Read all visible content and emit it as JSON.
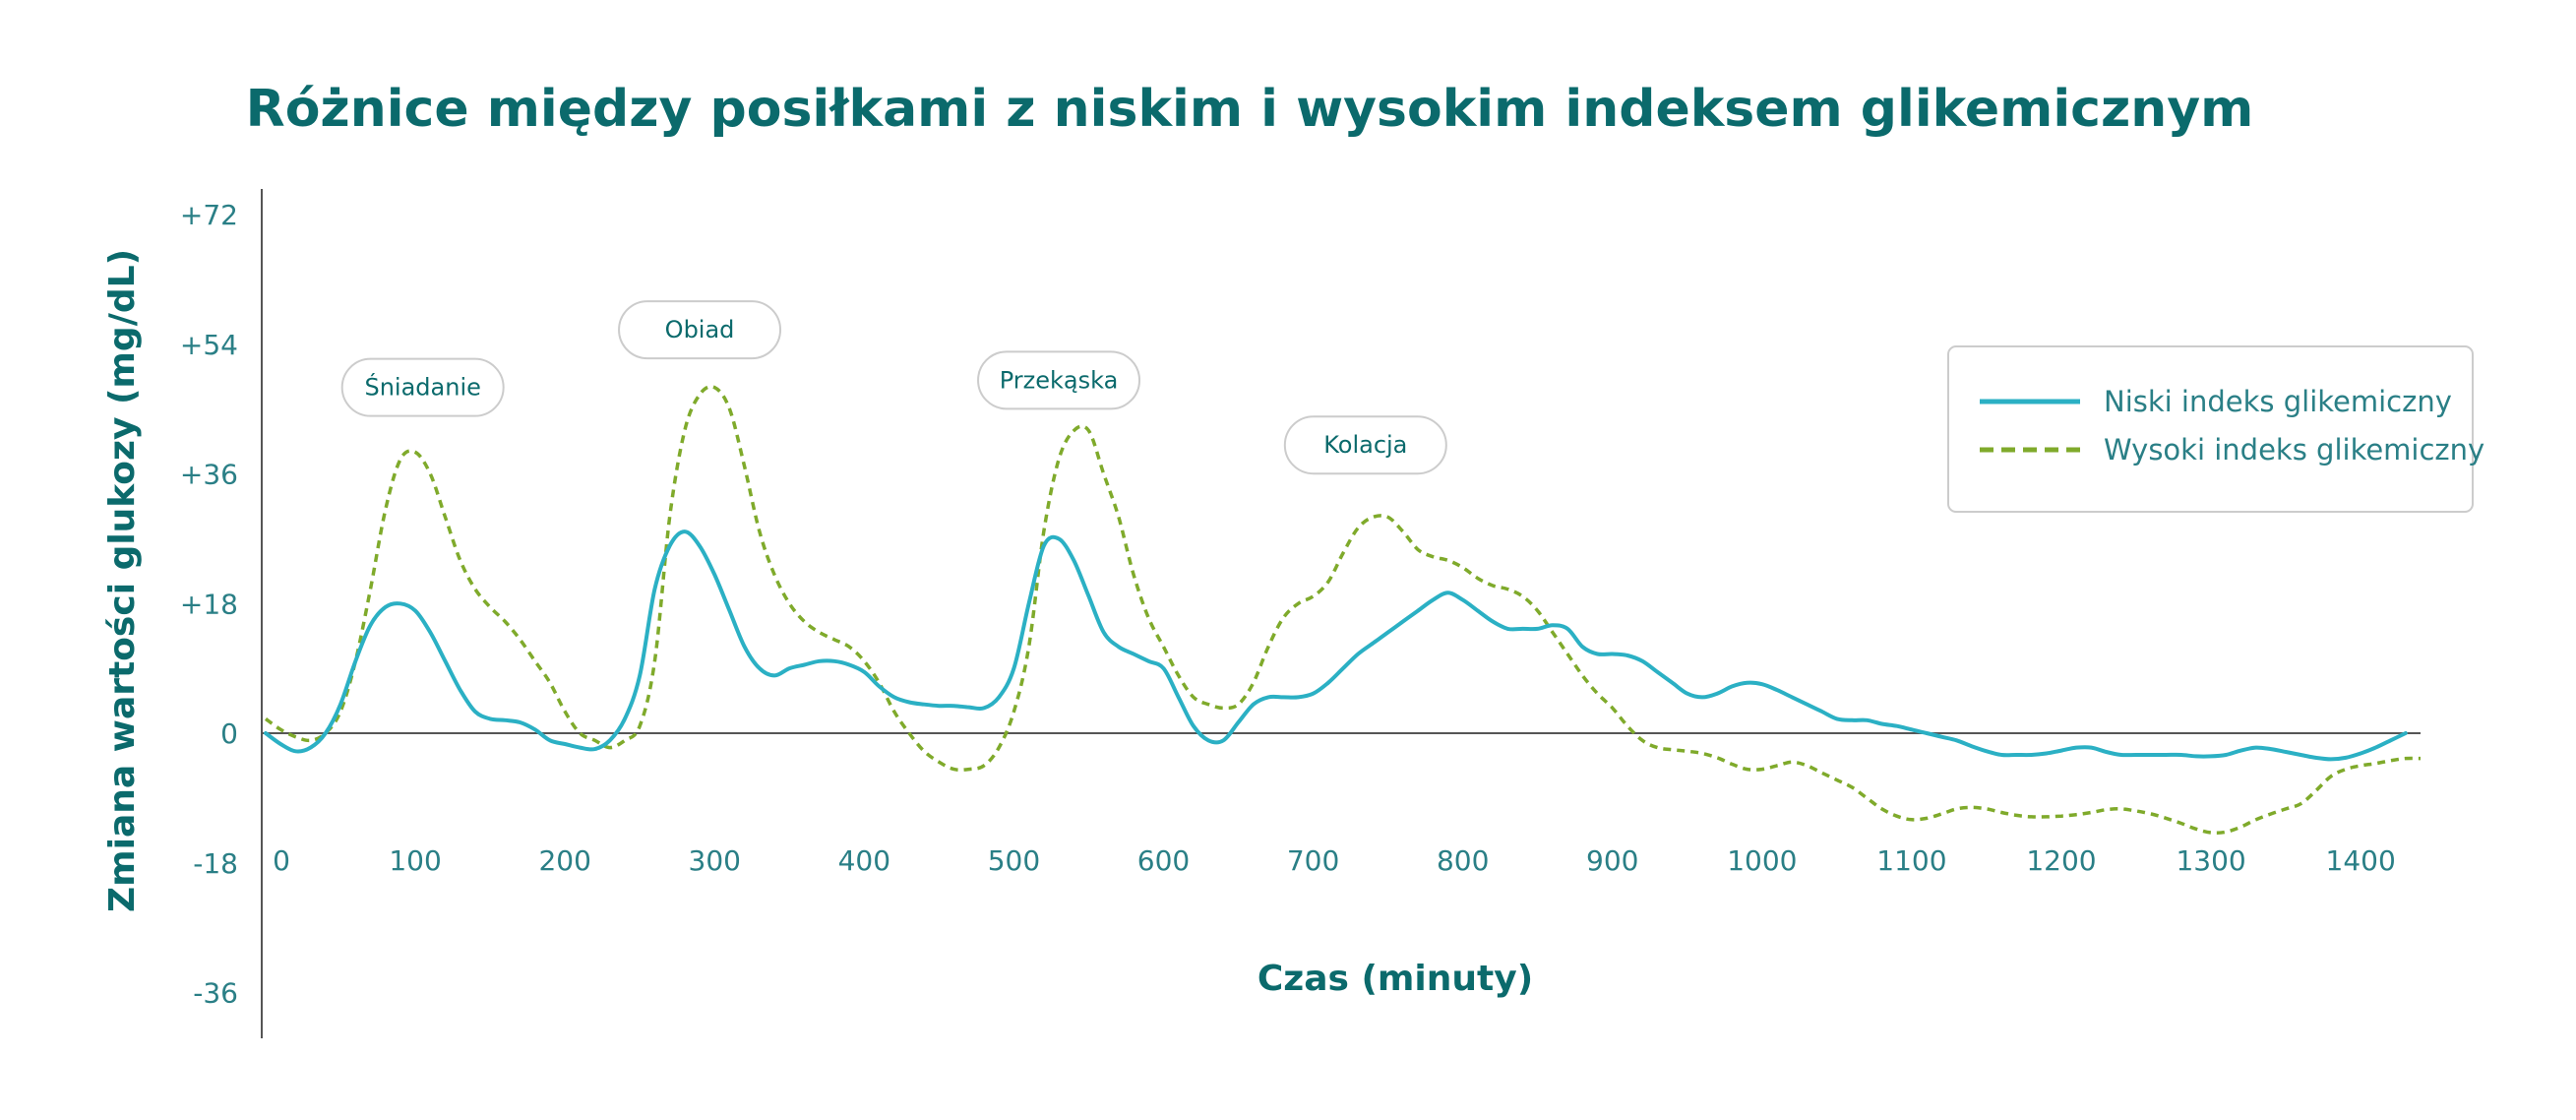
{
  "chart_data": {
    "type": "line",
    "title": "Różnice między posiłkami z niskim i wysokim indeksem glikemicznym",
    "xlabel": "Czas (minuty)",
    "ylabel": "Zmiana wartości glukozy (mg/dL)",
    "xlim": [
      0,
      1440
    ],
    "ylim": [
      -36,
      72
    ],
    "x_ticks": [
      0,
      100,
      200,
      300,
      400,
      500,
      600,
      700,
      800,
      900,
      1000,
      1100,
      1200,
      1300,
      1400
    ],
    "y_ticks": [
      "+72",
      "+54",
      "+36",
      "+18",
      "0",
      "-18",
      "-36"
    ],
    "y_tick_values": [
      72,
      54,
      36,
      18,
      0,
      -18,
      -36
    ],
    "grid": false,
    "legend_position": "top-right",
    "annotations": [
      {
        "text": "Śniadanie",
        "x": 105,
        "y": 48
      },
      {
        "text": "Obiad",
        "x": 290,
        "y": 56
      },
      {
        "text": "Przekąska",
        "x": 530,
        "y": 49
      },
      {
        "text": "Kolacja",
        "x": 735,
        "y": 40
      }
    ],
    "series": [
      {
        "name": "Niski indeks glikemiczny",
        "color": "#2bb0c4",
        "style": "solid",
        "points": [
          [
            0,
            0
          ],
          [
            10,
            -1.5
          ],
          [
            20,
            -2.5
          ],
          [
            30,
            -2
          ],
          [
            40,
            0
          ],
          [
            50,
            4
          ],
          [
            60,
            10
          ],
          [
            70,
            15
          ],
          [
            80,
            17.5
          ],
          [
            90,
            18
          ],
          [
            100,
            17
          ],
          [
            110,
            14
          ],
          [
            120,
            10
          ],
          [
            130,
            6
          ],
          [
            140,
            3
          ],
          [
            150,
            2
          ],
          [
            160,
            1.8
          ],
          [
            170,
            1.5
          ],
          [
            180,
            0.5
          ],
          [
            190,
            -1
          ],
          [
            200,
            -1.5
          ],
          [
            210,
            -2
          ],
          [
            220,
            -2.2
          ],
          [
            230,
            -1
          ],
          [
            240,
            2
          ],
          [
            250,
            8
          ],
          [
            260,
            20
          ],
          [
            270,
            26
          ],
          [
            280,
            28
          ],
          [
            290,
            26
          ],
          [
            300,
            22
          ],
          [
            310,
            17
          ],
          [
            320,
            12
          ],
          [
            330,
            9
          ],
          [
            340,
            8
          ],
          [
            350,
            9
          ],
          [
            360,
            9.5
          ],
          [
            370,
            10
          ],
          [
            380,
            10
          ],
          [
            390,
            9.5
          ],
          [
            400,
            8.5
          ],
          [
            410,
            6.5
          ],
          [
            420,
            5
          ],
          [
            430,
            4.3
          ],
          [
            440,
            4
          ],
          [
            450,
            3.8
          ],
          [
            460,
            3.8
          ],
          [
            470,
            3.6
          ],
          [
            480,
            3.5
          ],
          [
            490,
            5
          ],
          [
            500,
            9
          ],
          [
            510,
            18
          ],
          [
            520,
            26
          ],
          [
            530,
            27
          ],
          [
            540,
            24
          ],
          [
            550,
            19
          ],
          [
            560,
            14
          ],
          [
            570,
            12
          ],
          [
            580,
            11
          ],
          [
            590,
            10
          ],
          [
            600,
            9
          ],
          [
            610,
            5
          ],
          [
            620,
            1
          ],
          [
            630,
            -1
          ],
          [
            640,
            -1
          ],
          [
            650,
            1.5
          ],
          [
            660,
            4
          ],
          [
            670,
            5
          ],
          [
            680,
            5
          ],
          [
            690,
            5
          ],
          [
            700,
            5.5
          ],
          [
            710,
            7
          ],
          [
            720,
            9
          ],
          [
            730,
            11
          ],
          [
            740,
            12.5
          ],
          [
            750,
            14
          ],
          [
            760,
            15.5
          ],
          [
            770,
            17
          ],
          [
            780,
            18.5
          ],
          [
            790,
            19.5
          ],
          [
            800,
            18.5
          ],
          [
            810,
            17
          ],
          [
            820,
            15.5
          ],
          [
            830,
            14.5
          ],
          [
            840,
            14.5
          ],
          [
            850,
            14.5
          ],
          [
            860,
            15
          ],
          [
            870,
            14.5
          ],
          [
            880,
            12
          ],
          [
            890,
            11
          ],
          [
            900,
            11
          ],
          [
            910,
            10.8
          ],
          [
            920,
            10
          ],
          [
            930,
            8.5
          ],
          [
            940,
            7
          ],
          [
            950,
            5.5
          ],
          [
            960,
            5
          ],
          [
            970,
            5.5
          ],
          [
            980,
            6.5
          ],
          [
            990,
            7
          ],
          [
            1000,
            6.8
          ],
          [
            1010,
            6
          ],
          [
            1020,
            5
          ],
          [
            1030,
            4
          ],
          [
            1040,
            3
          ],
          [
            1050,
            2
          ],
          [
            1060,
            1.8
          ],
          [
            1070,
            1.8
          ],
          [
            1080,
            1.3
          ],
          [
            1090,
            1
          ],
          [
            1100,
            0.5
          ],
          [
            1110,
            0
          ],
          [
            1120,
            -0.5
          ],
          [
            1130,
            -1
          ],
          [
            1140,
            -1.8
          ],
          [
            1150,
            -2.5
          ],
          [
            1160,
            -3
          ],
          [
            1170,
            -3
          ],
          [
            1180,
            -3
          ],
          [
            1190,
            -2.8
          ],
          [
            1200,
            -2.4
          ],
          [
            1210,
            -2
          ],
          [
            1220,
            -2
          ],
          [
            1230,
            -2.6
          ],
          [
            1240,
            -3
          ],
          [
            1250,
            -3
          ],
          [
            1260,
            -3
          ],
          [
            1270,
            -3
          ],
          [
            1280,
            -3
          ],
          [
            1290,
            -3.2
          ],
          [
            1300,
            -3.2
          ],
          [
            1310,
            -3
          ],
          [
            1320,
            -2.4
          ],
          [
            1330,
            -2
          ],
          [
            1340,
            -2.2
          ],
          [
            1350,
            -2.6
          ],
          [
            1360,
            -3
          ],
          [
            1370,
            -3.4
          ],
          [
            1380,
            -3.6
          ],
          [
            1390,
            -3.4
          ],
          [
            1400,
            -2.8
          ],
          [
            1410,
            -2
          ],
          [
            1420,
            -1
          ],
          [
            1430,
            0
          ]
        ]
      },
      {
        "name": "Wysoki indeks glikemiczny",
        "color": "#7faa2b",
        "style": "dashed",
        "points": [
          [
            0,
            2
          ],
          [
            10,
            0.5
          ],
          [
            20,
            -0.5
          ],
          [
            30,
            -1
          ],
          [
            40,
            0
          ],
          [
            50,
            3
          ],
          [
            60,
            10
          ],
          [
            70,
            20
          ],
          [
            80,
            31
          ],
          [
            90,
            38
          ],
          [
            100,
            39
          ],
          [
            110,
            36
          ],
          [
            120,
            30
          ],
          [
            130,
            24
          ],
          [
            140,
            20
          ],
          [
            150,
            17.5
          ],
          [
            160,
            15.5
          ],
          [
            170,
            13
          ],
          [
            180,
            10
          ],
          [
            190,
            7
          ],
          [
            200,
            3
          ],
          [
            210,
            0
          ],
          [
            220,
            -1
          ],
          [
            230,
            -2
          ],
          [
            240,
            -1
          ],
          [
            250,
            1
          ],
          [
            260,
            10
          ],
          [
            270,
            30
          ],
          [
            280,
            42
          ],
          [
            290,
            47
          ],
          [
            300,
            48
          ],
          [
            310,
            45
          ],
          [
            320,
            37
          ],
          [
            330,
            28
          ],
          [
            340,
            22
          ],
          [
            350,
            18
          ],
          [
            360,
            15.5
          ],
          [
            370,
            14
          ],
          [
            380,
            13
          ],
          [
            390,
            12
          ],
          [
            400,
            10
          ],
          [
            410,
            7
          ],
          [
            420,
            3
          ],
          [
            430,
            0
          ],
          [
            440,
            -2.5
          ],
          [
            450,
            -4
          ],
          [
            460,
            -5
          ],
          [
            470,
            -5
          ],
          [
            480,
            -4.5
          ],
          [
            490,
            -2
          ],
          [
            500,
            3
          ],
          [
            510,
            12
          ],
          [
            520,
            28
          ],
          [
            530,
            38
          ],
          [
            540,
            42
          ],
          [
            550,
            42
          ],
          [
            560,
            36
          ],
          [
            570,
            30
          ],
          [
            580,
            22
          ],
          [
            590,
            16
          ],
          [
            600,
            12
          ],
          [
            610,
            8
          ],
          [
            620,
            5
          ],
          [
            630,
            4
          ],
          [
            640,
            3.5
          ],
          [
            650,
            4
          ],
          [
            660,
            7
          ],
          [
            670,
            12
          ],
          [
            680,
            16
          ],
          [
            690,
            18
          ],
          [
            700,
            19
          ],
          [
            710,
            21
          ],
          [
            720,
            25
          ],
          [
            730,
            28.5
          ],
          [
            740,
            30
          ],
          [
            750,
            30
          ],
          [
            760,
            28
          ],
          [
            770,
            25.5
          ],
          [
            780,
            24.5
          ],
          [
            790,
            24
          ],
          [
            800,
            23
          ],
          [
            810,
            21.5
          ],
          [
            820,
            20.5
          ],
          [
            830,
            20
          ],
          [
            840,
            19
          ],
          [
            850,
            17
          ],
          [
            860,
            14
          ],
          [
            870,
            11
          ],
          [
            880,
            8
          ],
          [
            890,
            5.5
          ],
          [
            900,
            3.5
          ],
          [
            910,
            1
          ],
          [
            920,
            -1
          ],
          [
            930,
            -2
          ],
          [
            940,
            -2.3
          ],
          [
            950,
            -2.5
          ],
          [
            960,
            -2.8
          ],
          [
            970,
            -3.4
          ],
          [
            980,
            -4.3
          ],
          [
            990,
            -5
          ],
          [
            1000,
            -5
          ],
          [
            1010,
            -4.5
          ],
          [
            1020,
            -4
          ],
          [
            1030,
            -4.5
          ],
          [
            1040,
            -5.5
          ],
          [
            1050,
            -6.5
          ],
          [
            1060,
            -7.5
          ],
          [
            1070,
            -9
          ],
          [
            1080,
            -10.5
          ],
          [
            1090,
            -11.5
          ],
          [
            1100,
            -12
          ],
          [
            1110,
            -11.8
          ],
          [
            1120,
            -11.2
          ],
          [
            1130,
            -10.5
          ],
          [
            1140,
            -10.3
          ],
          [
            1150,
            -10.5
          ],
          [
            1160,
            -11
          ],
          [
            1170,
            -11.4
          ],
          [
            1180,
            -11.6
          ],
          [
            1190,
            -11.6
          ],
          [
            1200,
            -11.5
          ],
          [
            1210,
            -11.3
          ],
          [
            1220,
            -11
          ],
          [
            1230,
            -10.6
          ],
          [
            1240,
            -10.5
          ],
          [
            1250,
            -10.8
          ],
          [
            1260,
            -11.2
          ],
          [
            1270,
            -11.8
          ],
          [
            1280,
            -12.5
          ],
          [
            1290,
            -13.3
          ],
          [
            1300,
            -13.8
          ],
          [
            1310,
            -13.7
          ],
          [
            1320,
            -13
          ],
          [
            1330,
            -12
          ],
          [
            1340,
            -11.2
          ],
          [
            1350,
            -10.5
          ],
          [
            1360,
            -9.8
          ],
          [
            1370,
            -8
          ],
          [
            1380,
            -6
          ],
          [
            1390,
            -5
          ],
          [
            1400,
            -4.5
          ],
          [
            1410,
            -4.2
          ],
          [
            1420,
            -3.8
          ],
          [
            1430,
            -3.5
          ],
          [
            1440,
            -3.5
          ]
        ]
      }
    ]
  }
}
